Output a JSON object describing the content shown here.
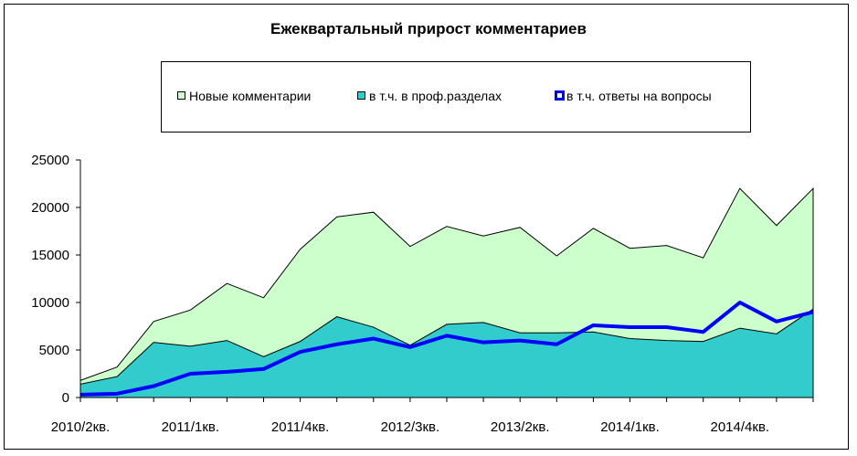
{
  "chart_data": {
    "type": "area",
    "title": "Ежеквартальный прирост комментариев",
    "xlabel": "",
    "ylabel": "",
    "ylim": [
      0,
      25000
    ],
    "yticks": [
      0,
      5000,
      10000,
      15000,
      20000,
      25000
    ],
    "ytick_labels": [
      "0",
      "5000",
      "10000",
      "15000",
      "20000",
      "25000"
    ],
    "categories": [
      "2010/2кв.",
      "2010/3кв.",
      "2010/4кв.",
      "2011/1кв.",
      "2011/2кв.",
      "2011/3кв.",
      "2011/4кв.",
      "2012/1кв.",
      "2012/2кв.",
      "2012/3кв.",
      "2012/4кв.",
      "2013/1кв.",
      "2013/2кв.",
      "2013/3кв.",
      "2013/4кв.",
      "2014/1кв.",
      "2014/2кв.",
      "2014/3кв.",
      "2014/4кв.",
      "2015/1кв.",
      "2015/2кв."
    ],
    "xtick_labels": [
      "2010/2кв.",
      "2011/1кв.",
      "2011/4кв.",
      "2012/3кв.",
      "2013/2кв.",
      "2014/1кв.",
      "2014/4кв."
    ],
    "xtick_category_index": [
      0,
      3,
      6,
      9,
      12,
      15,
      18
    ],
    "series": [
      {
        "name": "Новые комментарии",
        "kind": "area",
        "color": "#ccffcc",
        "values": [
          1800,
          3200,
          8000,
          9200,
          12000,
          10500,
          15600,
          19000,
          19500,
          15900,
          18000,
          17000,
          17900,
          14900,
          17800,
          15700,
          16000,
          14700,
          22000,
          18100,
          22000
        ]
      },
      {
        "name": "в т.ч. в проф.разделах",
        "kind": "area",
        "color": "#33cccc",
        "values": [
          1400,
          2200,
          5800,
          5400,
          6000,
          4300,
          5900,
          8500,
          7400,
          5500,
          7700,
          7900,
          6800,
          6800,
          6900,
          6200,
          6000,
          5900,
          7300,
          6700,
          9300
        ]
      },
      {
        "name": "в т.ч. ответы на вопросы",
        "kind": "line",
        "color": "#0000ff",
        "values": [
          300,
          400,
          1200,
          2500,
          2700,
          3000,
          4800,
          5600,
          6200,
          5300,
          6500,
          5800,
          6000,
          5600,
          7600,
          7400,
          7400,
          6900,
          10000,
          8000,
          9000
        ]
      }
    ],
    "legend_position": "top",
    "grid": false
  }
}
